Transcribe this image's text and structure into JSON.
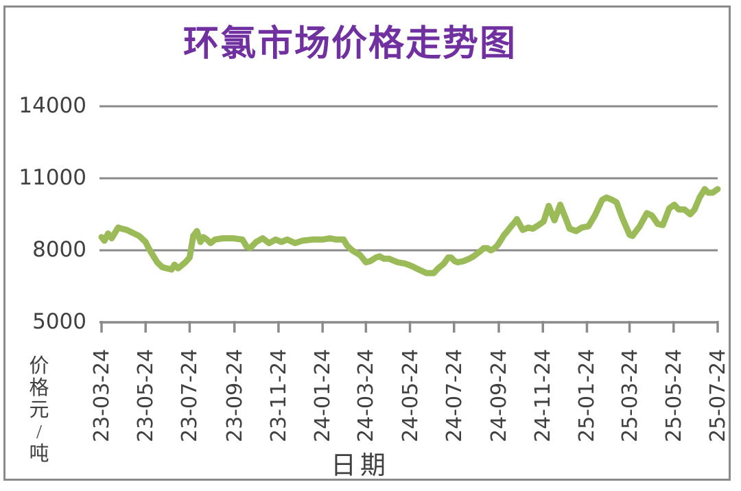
{
  "colors": {
    "title": "#7030a0",
    "line": "#9bbb59",
    "grid": "#8a8a8a",
    "axis": "#8a8a8a",
    "tick_text": "#404040",
    "frame_border": "#8a8a8a",
    "background": "#ffffff"
  },
  "chart_data": {
    "type": "line",
    "title": "环氯市场价格走势图",
    "xlabel": "日期",
    "ylabel": "价格元/吨",
    "ylim": [
      5000,
      14000
    ],
    "y_ticks": [
      14000,
      11000,
      8000,
      5000
    ],
    "x_tick_labels": [
      "23-03-24",
      "23-05-24",
      "23-07-24",
      "23-09-24",
      "23-11-24",
      "24-01-24",
      "24-03-24",
      "24-05-24",
      "24-07-24",
      "24-09-24",
      "24-11-24",
      "25-01-24",
      "25-03-24",
      "25-05-24",
      "25-07-24"
    ],
    "grid": "horizontal-only",
    "legend": "none",
    "series": [
      {
        "color": "#9bbb59",
        "points": [
          [
            "2023-03-24",
            8550
          ],
          [
            "2023-03-28",
            8400
          ],
          [
            "2023-04-02",
            8700
          ],
          [
            "2023-04-07",
            8500
          ],
          [
            "2023-04-16",
            8950
          ],
          [
            "2023-04-21",
            8900
          ],
          [
            "2023-04-28",
            8850
          ],
          [
            "2023-05-08",
            8700
          ],
          [
            "2023-05-15",
            8600
          ],
          [
            "2023-05-24",
            8350
          ],
          [
            "2023-05-28",
            8100
          ],
          [
            "2023-06-03",
            7800
          ],
          [
            "2023-06-09",
            7500
          ],
          [
            "2023-06-16",
            7300
          ],
          [
            "2023-06-22",
            7250
          ],
          [
            "2023-06-29",
            7200
          ],
          [
            "2023-07-03",
            7400
          ],
          [
            "2023-07-08",
            7250
          ],
          [
            "2023-07-18",
            7500
          ],
          [
            "2023-07-24",
            7700
          ],
          [
            "2023-07-29",
            8600
          ],
          [
            "2023-08-03",
            8800
          ],
          [
            "2023-08-08",
            8350
          ],
          [
            "2023-08-12",
            8550
          ],
          [
            "2023-08-17",
            8450
          ],
          [
            "2023-08-22",
            8300
          ],
          [
            "2023-08-28",
            8450
          ],
          [
            "2023-09-08",
            8500
          ],
          [
            "2023-09-22",
            8500
          ],
          [
            "2023-10-05",
            8450
          ],
          [
            "2023-10-11",
            8150
          ],
          [
            "2023-10-16",
            8100
          ],
          [
            "2023-10-24",
            8350
          ],
          [
            "2023-11-02",
            8500
          ],
          [
            "2023-11-11",
            8300
          ],
          [
            "2023-11-20",
            8450
          ],
          [
            "2023-11-28",
            8350
          ],
          [
            "2023-12-06",
            8450
          ],
          [
            "2023-12-17",
            8300
          ],
          [
            "2023-12-27",
            8400
          ],
          [
            "2024-01-10",
            8450
          ],
          [
            "2024-01-24",
            8450
          ],
          [
            "2024-02-03",
            8500
          ],
          [
            "2024-02-12",
            8450
          ],
          [
            "2024-02-22",
            8450
          ],
          [
            "2024-02-27",
            8200
          ],
          [
            "2024-03-05",
            8000
          ],
          [
            "2024-03-16",
            7800
          ],
          [
            "2024-03-24",
            7500
          ],
          [
            "2024-03-30",
            7550
          ],
          [
            "2024-04-07",
            7700
          ],
          [
            "2024-04-12",
            7750
          ],
          [
            "2024-04-18",
            7650
          ],
          [
            "2024-04-25",
            7650
          ],
          [
            "2024-05-07",
            7500
          ],
          [
            "2024-05-17",
            7450
          ],
          [
            "2024-05-26",
            7350
          ],
          [
            "2024-06-05",
            7200
          ],
          [
            "2024-06-16",
            7050
          ],
          [
            "2024-06-26",
            7050
          ],
          [
            "2024-07-02",
            7250
          ],
          [
            "2024-07-10",
            7450
          ],
          [
            "2024-07-16",
            7700
          ],
          [
            "2024-07-20",
            7700
          ],
          [
            "2024-07-25",
            7550
          ],
          [
            "2024-07-29",
            7500
          ],
          [
            "2024-08-06",
            7550
          ],
          [
            "2024-08-14",
            7650
          ],
          [
            "2024-08-20",
            7750
          ],
          [
            "2024-08-30",
            7980
          ],
          [
            "2024-09-03",
            8090
          ],
          [
            "2024-09-08",
            8090
          ],
          [
            "2024-09-13",
            8000
          ],
          [
            "2024-09-17",
            8060
          ],
          [
            "2024-09-22",
            8200
          ],
          [
            "2024-09-27",
            8430
          ],
          [
            "2024-10-01",
            8630
          ],
          [
            "2024-10-06",
            8800
          ],
          [
            "2024-10-11",
            9000
          ],
          [
            "2024-10-16",
            9170
          ],
          [
            "2024-10-19",
            9300
          ],
          [
            "2024-10-27",
            8850
          ],
          [
            "2024-11-04",
            8950
          ],
          [
            "2024-11-10",
            8900
          ],
          [
            "2024-11-18",
            9050
          ],
          [
            "2024-11-25",
            9200
          ],
          [
            "2024-12-02",
            9850
          ],
          [
            "2024-12-10",
            9250
          ],
          [
            "2024-12-18",
            9900
          ],
          [
            "2024-12-26",
            9300
          ],
          [
            "2024-12-31",
            8900
          ],
          [
            "2025-01-09",
            8800
          ],
          [
            "2025-01-17",
            8950
          ],
          [
            "2025-01-26",
            9000
          ],
          [
            "2025-02-04",
            9450
          ],
          [
            "2025-02-14",
            10100
          ],
          [
            "2025-02-20",
            10200
          ],
          [
            "2025-02-28",
            10100
          ],
          [
            "2025-03-06",
            10000
          ],
          [
            "2025-03-14",
            9350
          ],
          [
            "2025-03-24",
            8650
          ],
          [
            "2025-03-28",
            8600
          ],
          [
            "2025-04-07",
            9000
          ],
          [
            "2025-04-17",
            9550
          ],
          [
            "2025-04-24",
            9450
          ],
          [
            "2025-05-02",
            9100
          ],
          [
            "2025-05-09",
            9050
          ],
          [
            "2025-05-18",
            9750
          ],
          [
            "2025-05-25",
            9900
          ],
          [
            "2025-05-31",
            9700
          ],
          [
            "2025-06-08",
            9700
          ],
          [
            "2025-06-16",
            9500
          ],
          [
            "2025-06-22",
            9700
          ],
          [
            "2025-06-29",
            10200
          ],
          [
            "2025-07-06",
            10550
          ],
          [
            "2025-07-11",
            10400
          ],
          [
            "2025-07-17",
            10400
          ],
          [
            "2025-07-24",
            10550
          ]
        ]
      }
    ]
  }
}
